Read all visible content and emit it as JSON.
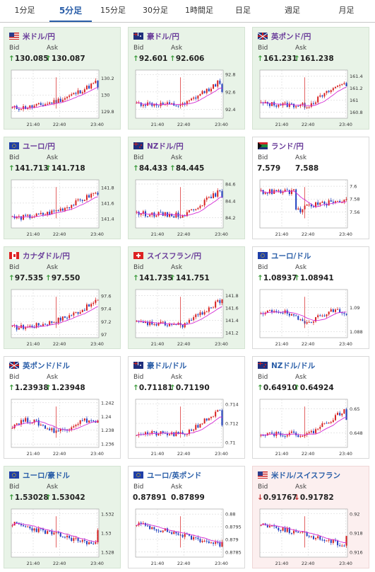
{
  "tabs": [
    {
      "label": "1分足",
      "active": false
    },
    {
      "label": "5分足",
      "active": true
    },
    {
      "label": "15分足",
      "active": false
    },
    {
      "label": "30分足",
      "active": false
    },
    {
      "label": "1時間足",
      "active": false
    },
    {
      "label": "日足",
      "active": false
    },
    {
      "label": "週足",
      "active": false
    },
    {
      "label": "月足",
      "active": false
    }
  ],
  "labels": {
    "bid": "Bid",
    "ask": "Ask"
  },
  "colors": {
    "up_candle": "#d71f1f",
    "down_candle": "#1f3fbf",
    "ma_line": "#d42cd4",
    "up_arrow": "#3b9a3b",
    "down_arrow": "#c03030"
  },
  "cards": [
    {
      "name": "米ドル/円",
      "flag": "flag-us",
      "title_color": "#6a3d9a",
      "bid": "130.085",
      "ask": "130.087",
      "direction": "up",
      "state": "up",
      "chart_data": {
        "type": "candlestick",
        "x_ticks": [
          "21:40",
          "22:40",
          "23:40"
        ],
        "y_ticks": [
          "130.2",
          "130",
          "129.8"
        ],
        "ylim": [
          129.72,
          130.3
        ],
        "last": 130.09,
        "shape": "updrift"
      }
    },
    {
      "name": "豪ドル/円",
      "flag": "flag-au",
      "title_color": "#6a3d9a",
      "bid": "92.601",
      "ask": "92.606",
      "direction": "up",
      "state": "up",
      "chart_data": {
        "type": "candlestick",
        "x_ticks": [
          "21:40",
          "22:40",
          "23:40"
        ],
        "y_ticks": [
          "92.8",
          "92.6",
          "92.4"
        ],
        "ylim": [
          92.3,
          92.85
        ],
        "last": 92.6,
        "shape": "lateup"
      }
    },
    {
      "name": "英ポンド/円",
      "flag": "flag-gb",
      "title_color": "#6a3d9a",
      "bid": "161.231",
      "ask": "161.238",
      "direction": "up",
      "state": "up",
      "chart_data": {
        "type": "candlestick",
        "x_ticks": [
          "21:40",
          "22:40",
          "23:40"
        ],
        "y_ticks": [
          "161.4",
          "161.2",
          "161",
          "160.8"
        ],
        "ylim": [
          160.7,
          161.5
        ],
        "last": 161.23,
        "shape": "lateup"
      }
    },
    {
      "name": "ユーロ/円",
      "flag": "flag-eu",
      "title_color": "#6a3d9a",
      "bid": "141.713",
      "ask": "141.718",
      "direction": "up",
      "state": "up",
      "chart_data": {
        "type": "candlestick",
        "x_ticks": [
          "21:40",
          "22:40",
          "23:40"
        ],
        "y_ticks": [
          "141.8",
          "141.6",
          "141.4"
        ],
        "ylim": [
          141.28,
          141.9
        ],
        "last": 141.71,
        "shape": "updrift"
      }
    },
    {
      "name": "NZドル/円",
      "flag": "flag-nz",
      "title_color": "#6a3d9a",
      "bid": "84.433",
      "ask": "84.445",
      "direction": "up",
      "state": "up",
      "chart_data": {
        "type": "candlestick",
        "x_ticks": [
          "21:40",
          "22:40",
          "23:40"
        ],
        "y_ticks": [
          "84.6",
          "84.4",
          "84.2"
        ],
        "ylim": [
          84.08,
          84.65
        ],
        "last": 84.44,
        "shape": "lateup"
      }
    },
    {
      "name": "ランド/円",
      "flag": "flag-za",
      "title_color": "#6a3d9a",
      "bid": "7.579",
      "ask": "7.588",
      "direction": "none",
      "state": "neutral",
      "chart_data": {
        "type": "candlestick",
        "x_ticks": [
          "21:40",
          "22:40",
          "23:40"
        ],
        "y_ticks": [
          "7.6",
          "7.58",
          "7.56"
        ],
        "ylim": [
          7.535,
          7.61
        ],
        "last": 7.58,
        "shape": "dipflat"
      }
    },
    {
      "name": "カナダドル/円",
      "flag": "flag-ca",
      "title_color": "#6a3d9a",
      "bid": "97.535",
      "ask": "97.550",
      "direction": "up",
      "state": "up",
      "chart_data": {
        "type": "candlestick",
        "x_ticks": [
          "21:40",
          "22:40",
          "23:40"
        ],
        "y_ticks": [
          "97.6",
          "97.4",
          "97.2",
          "97"
        ],
        "ylim": [
          96.95,
          97.7
        ],
        "last": 97.54,
        "shape": "updrift"
      }
    },
    {
      "name": "スイスフラン/円",
      "flag": "flag-ch",
      "title_color": "#6a3d9a",
      "bid": "141.735",
      "ask": "141.751",
      "direction": "up",
      "state": "up",
      "chart_data": {
        "type": "candlestick",
        "x_ticks": [
          "21:40",
          "22:40",
          "23:40"
        ],
        "y_ticks": [
          "141.8",
          "141.6",
          "141.4",
          "141.2"
        ],
        "ylim": [
          141.12,
          141.9
        ],
        "last": 141.74,
        "shape": "lateup"
      }
    },
    {
      "name": "ユーロ/ドル",
      "flag": "flag-eu",
      "title_color": "#2a5ea8",
      "bid": "1.08937",
      "ask": "1.08941",
      "direction": "up",
      "state": "neutral",
      "chart_data": {
        "type": "candlestick",
        "x_ticks": [
          "21:40",
          "22:40",
          "23:40"
        ],
        "y_ticks": [
          "1.09",
          "1.088"
        ],
        "ylim": [
          1.0875,
          1.0915
        ],
        "last": 1.0894,
        "shape": "choppy"
      }
    },
    {
      "name": "英ポンド/ドル",
      "flag": "flag-gb",
      "title_color": "#2a5ea8",
      "bid": "1.23938",
      "ask": "1.23948",
      "direction": "up",
      "state": "neutral",
      "chart_data": {
        "type": "candlestick",
        "x_ticks": [
          "21:40",
          "22:40",
          "23:40"
        ],
        "y_ticks": [
          "1.242",
          "1.24",
          "1.238",
          "1.236"
        ],
        "ylim": [
          1.2355,
          1.2425
        ],
        "last": 1.2394,
        "shape": "choppy"
      }
    },
    {
      "name": "豪ドル/ドル",
      "flag": "flag-au",
      "title_color": "#2a5ea8",
      "bid": "0.71181",
      "ask": "0.71190",
      "direction": "up",
      "state": "neutral",
      "chart_data": {
        "type": "candlestick",
        "x_ticks": [
          "21:40",
          "22:40",
          "23:40"
        ],
        "y_ticks": [
          "0.714",
          "0.712",
          "0.71"
        ],
        "ylim": [
          0.7095,
          0.7145
        ],
        "last": 0.7118,
        "shape": "lateup"
      }
    },
    {
      "name": "NZドル/ドル",
      "flag": "flag-nz",
      "title_color": "#2a5ea8",
      "bid": "0.64910",
      "ask": "0.64924",
      "direction": "up",
      "state": "neutral",
      "chart_data": {
        "type": "candlestick",
        "x_ticks": [
          "21:40",
          "22:40",
          "23:40"
        ],
        "y_ticks": [
          "0.65",
          "0.648"
        ],
        "ylim": [
          0.6468,
          0.6508
        ],
        "last": 0.6491,
        "shape": "lateup"
      }
    },
    {
      "name": "ユーロ/豪ドル",
      "flag": "flag-eu",
      "title_color": "#2a5ea8",
      "bid": "1.53028",
      "ask": "1.53042",
      "direction": "up",
      "state": "up",
      "chart_data": {
        "type": "candlestick",
        "x_ticks": [
          "21:40",
          "22:40",
          "23:40"
        ],
        "y_ticks": [
          "1.532",
          "1.53",
          "1.528"
        ],
        "ylim": [
          1.5275,
          1.5325
        ],
        "last": 1.5303,
        "shape": "downdrift"
      }
    },
    {
      "name": "ユーロ/英ポンド",
      "flag": "flag-eu",
      "title_color": "#2a5ea8",
      "bid": "0.87891",
      "ask": "0.87899",
      "direction": "none",
      "state": "neutral",
      "chart_data": {
        "type": "candlestick",
        "x_ticks": [
          "21:40",
          "22:40",
          "23:40"
        ],
        "y_ticks": [
          "0.88",
          "0.8795",
          "0.879",
          "0.8785"
        ],
        "ylim": [
          0.8783,
          0.8802
        ],
        "last": 0.8789,
        "shape": "downdrift"
      }
    },
    {
      "name": "米ドル/スイスフラン",
      "flag": "flag-us",
      "title_color": "#2a5ea8",
      "bid": "0.91767",
      "ask": "0.91782",
      "direction": "down",
      "state": "down",
      "chart_data": {
        "type": "candlestick",
        "x_ticks": [
          "21:40",
          "22:40",
          "23:40"
        ],
        "y_ticks": [
          "0.92",
          "0.918",
          "0.916"
        ],
        "ylim": [
          0.9155,
          0.9205
        ],
        "last": 0.9177,
        "shape": "downdrift"
      }
    }
  ]
}
